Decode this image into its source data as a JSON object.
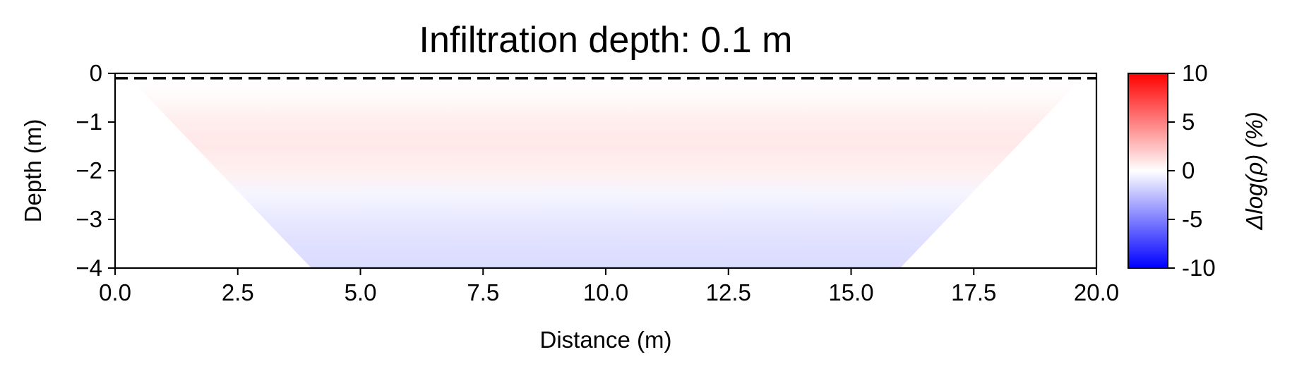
{
  "chart_data": {
    "type": "heatmap",
    "title": "Infiltration depth: 0.1 m",
    "xlabel": "Distance (m)",
    "ylabel": "Depth (m)",
    "xlim": [
      0,
      20
    ],
    "ylim": [
      -4,
      0
    ],
    "x_ticks": [
      0,
      2.5,
      5,
      7.5,
      10,
      12.5,
      15,
      17.5,
      20
    ],
    "x_tick_labels": [
      "0.0",
      "2.5",
      "5.0",
      "7.5",
      "10.0",
      "12.5",
      "15.0",
      "17.5",
      "20.0"
    ],
    "y_ticks": [
      0,
      -1,
      -2,
      -3,
      -4
    ],
    "y_tick_labels": [
      "0",
      "−1",
      "−2",
      "−3",
      "−4"
    ],
    "colormap": "bwr",
    "colorbar": {
      "label": "Δlog(ρ) (%)",
      "min": -10,
      "max": 10,
      "ticks": [
        10,
        5,
        0,
        -5,
        -10
      ],
      "tick_labels": [
        "10",
        "5",
        "0",
        "-5",
        "-10"
      ],
      "colors": {
        "min": "#0000ff",
        "mid": "#ffffff",
        "max": "#ff0000"
      }
    },
    "infiltration_depth_m": 0.1,
    "infiltration_line": {
      "depth": -0.1,
      "style": "dashed",
      "color": "#000000"
    },
    "coverage_polygon": [
      [
        0.3,
        -0.1
      ],
      [
        19.7,
        -0.1
      ],
      [
        16,
        -4
      ],
      [
        4,
        -4
      ]
    ],
    "depth_profile": [
      {
        "depth": -0.1,
        "value": 0.0
      },
      {
        "depth": -0.5,
        "value": 0.2
      },
      {
        "depth": -1.0,
        "value": 0.7
      },
      {
        "depth": -1.5,
        "value": 0.9
      },
      {
        "depth": -2.0,
        "value": 0.6
      },
      {
        "depth": -2.5,
        "value": -0.4
      },
      {
        "depth": -3.0,
        "value": -0.9
      },
      {
        "depth": -3.5,
        "value": -1.2
      },
      {
        "depth": -4.0,
        "value": -1.4
      }
    ],
    "grid": false
  }
}
